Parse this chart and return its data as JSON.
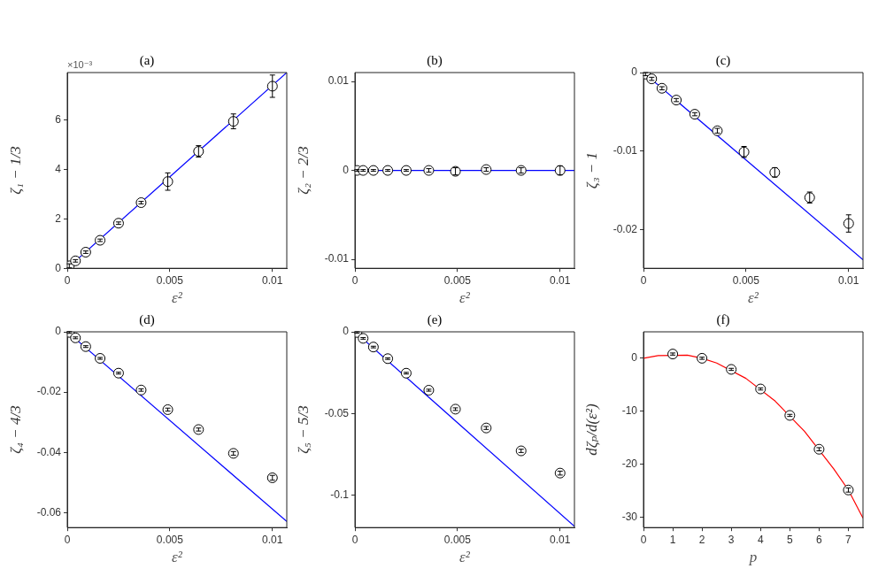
{
  "chart_data": [
    {
      "type": "scatter",
      "title": "(a)",
      "xlabel": "ε²",
      "ylabel": "ζ₁ − 1/3",
      "xlim": [
        0,
        0.0107
      ],
      "xticks": [
        0,
        0.005,
        0.01
      ],
      "ylim": [
        0,
        7.9
      ],
      "yticks": [
        0,
        2,
        4,
        6
      ],
      "grid": false,
      "annotations": [
        "×10⁻³"
      ],
      "series": [
        {
          "type": "scatter",
          "color": "#000000",
          "x": [
            0.0001,
            0.0004,
            0.0009,
            0.0016,
            0.0025,
            0.0036,
            0.0049,
            0.0064,
            0.0081,
            0.01
          ],
          "values": [
            0.1,
            0.3,
            0.65,
            1.13,
            1.82,
            2.65,
            3.5,
            4.72,
            5.93,
            7.35
          ],
          "errors": [
            0.08,
            0.05,
            0.05,
            0.05,
            0.05,
            0.05,
            0.35,
            0.23,
            0.3,
            0.45
          ],
          "marker": "circle"
        },
        {
          "type": "line",
          "color": "#0000ff",
          "x": [
            0,
            0.0107
          ],
          "values": [
            0,
            7.9
          ],
          "marker": "none"
        }
      ]
    },
    {
      "type": "scatter",
      "title": "(b)",
      "xlabel": "ε²",
      "ylabel": "ζ₂ − 2/3",
      "xlim": [
        0,
        0.0107
      ],
      "xticks": [
        0,
        0.005,
        0.01
      ],
      "ylim": [
        -0.011,
        0.011
      ],
      "yticks": [
        -0.01,
        0,
        0.01
      ],
      "grid": false,
      "series": [
        {
          "type": "scatter",
          "color": "#000000",
          "x": [
            0.0001,
            0.0004,
            0.0009,
            0.0016,
            0.0025,
            0.0036,
            0.0049,
            0.0064,
            0.0081,
            0.01
          ],
          "values": [
            0,
            0,
            0,
            0,
            0,
            0,
            -0.0001,
            0.0001,
            0,
            0
          ],
          "errors": [
            0.0001,
            0.0001,
            0.0001,
            0.0001,
            0.0001,
            0.0002,
            0.0004,
            0.0002,
            0.0003,
            0.0005
          ],
          "marker": "circle"
        },
        {
          "type": "line",
          "color": "#0000ff",
          "x": [
            0,
            0.0107
          ],
          "values": [
            0,
            0
          ],
          "marker": "none"
        }
      ]
    },
    {
      "type": "scatter",
      "title": "(c)",
      "xlabel": "ε²",
      "ylabel": "ζ₃ − 1",
      "xlim": [
        0,
        0.0107
      ],
      "xticks": [
        0,
        0.005,
        0.01
      ],
      "ylim": [
        -0.0249,
        0
      ],
      "yticks": [
        0,
        -0.01,
        -0.02
      ],
      "grid": false,
      "series": [
        {
          "type": "scatter",
          "color": "#000000",
          "x": [
            0.0001,
            0.0004,
            0.0009,
            0.0016,
            0.0025,
            0.0036,
            0.0049,
            0.0064,
            0.0081,
            0.01
          ],
          "values": [
            -0.0002,
            -0.0008,
            -0.002,
            -0.0035,
            -0.0053,
            -0.0074,
            -0.0101,
            -0.0127,
            -0.0159,
            -0.0192
          ],
          "errors": [
            0.0002,
            0.0002,
            0.0002,
            0.0002,
            0.0002,
            0.0003,
            0.0007,
            0.0006,
            0.0007,
            0.0011
          ],
          "marker": "circle"
        },
        {
          "type": "line",
          "color": "#0000ff",
          "x": [
            0,
            0.0107
          ],
          "values": [
            0,
            -0.0238
          ],
          "marker": "none"
        }
      ]
    },
    {
      "type": "scatter",
      "title": "(d)",
      "xlabel": "ε²",
      "ylabel": "ζ₄ − 4/3",
      "xlim": [
        0,
        0.0107
      ],
      "xticks": [
        0,
        0.005,
        0.01
      ],
      "ylim": [
        -0.0649,
        0
      ],
      "yticks": [
        0,
        -0.02,
        -0.04,
        -0.06
      ],
      "grid": false,
      "series": [
        {
          "type": "scatter",
          "color": "#000000",
          "x": [
            0.0001,
            0.0004,
            0.0009,
            0.0016,
            0.0025,
            0.0036,
            0.0049,
            0.0064,
            0.0081,
            0.01
          ],
          "values": [
            -0.0002,
            -0.002,
            -0.0049,
            -0.0088,
            -0.0137,
            -0.0193,
            -0.0258,
            -0.0324,
            -0.0403,
            -0.0484
          ],
          "errors": [
            0.0003,
            0.0003,
            0.0003,
            0.0003,
            0.0003,
            0.0004,
            0.0005,
            0.0005,
            0.0006,
            0.0008
          ],
          "marker": "circle"
        },
        {
          "type": "line",
          "color": "#0000ff",
          "x": [
            0,
            0.0107
          ],
          "values": [
            0,
            -0.0629
          ],
          "marker": "none"
        }
      ]
    },
    {
      "type": "scatter",
      "title": "(e)",
      "xlabel": "ε²",
      "ylabel": "ζ₅ − 5/3",
      "xlim": [
        0,
        0.0107
      ],
      "xticks": [
        0,
        0.005,
        0.01
      ],
      "ylim": [
        -0.1197,
        0
      ],
      "yticks": [
        0,
        -0.05,
        -0.1
      ],
      "grid": false,
      "series": [
        {
          "type": "scatter",
          "color": "#000000",
          "x": [
            0.0001,
            0.0004,
            0.0009,
            0.0016,
            0.0025,
            0.0036,
            0.0049,
            0.0064,
            0.0081,
            0.01
          ],
          "values": [
            -0.0004,
            -0.004,
            -0.0093,
            -0.0164,
            -0.0253,
            -0.0357,
            -0.0473,
            -0.0588,
            -0.0728,
            -0.0864
          ],
          "errors": [
            0.0005,
            0.0005,
            0.0005,
            0.0005,
            0.0005,
            0.0006,
            0.0008,
            0.0009,
            0.001,
            0.0012
          ],
          "marker": "circle"
        },
        {
          "type": "line",
          "color": "#0000ff",
          "x": [
            0,
            0.0107
          ],
          "values": [
            0,
            -0.119
          ],
          "marker": "none"
        }
      ]
    },
    {
      "type": "scatter",
      "title": "(f)",
      "xlabel": "p",
      "ylabel": "dζₚ/d(ε²)",
      "xlim": [
        0,
        7.5
      ],
      "xticks": [
        0,
        1,
        2,
        3,
        4,
        5,
        6,
        7
      ],
      "ylim": [
        -32,
        5
      ],
      "yticks": [
        0,
        -10,
        -20,
        -30
      ],
      "grid": false,
      "series": [
        {
          "type": "scatter",
          "color": "#000000",
          "x": [
            1,
            2,
            3,
            4,
            5,
            6,
            7
          ],
          "values": [
            0.8,
            0,
            -2.1,
            -5.8,
            -10.8,
            -17.2,
            -24.9
          ],
          "errors": [
            0.2,
            0.2,
            0.2,
            0.2,
            0.2,
            0.3,
            0.4
          ],
          "marker": "circle"
        },
        {
          "type": "line",
          "color": "#ff0000",
          "x": [
            0,
            0.5,
            1.5,
            2,
            2.5,
            3.5,
            4.5,
            5.5,
            6.5,
            7,
            7.5
          ],
          "marker": "none",
          "values": [
            0,
            0.5,
            0.6,
            0,
            -0.9,
            -3.8,
            -8.1,
            -13.8,
            -20.9,
            -24.9,
            -30.2
          ]
        }
      ]
    }
  ]
}
